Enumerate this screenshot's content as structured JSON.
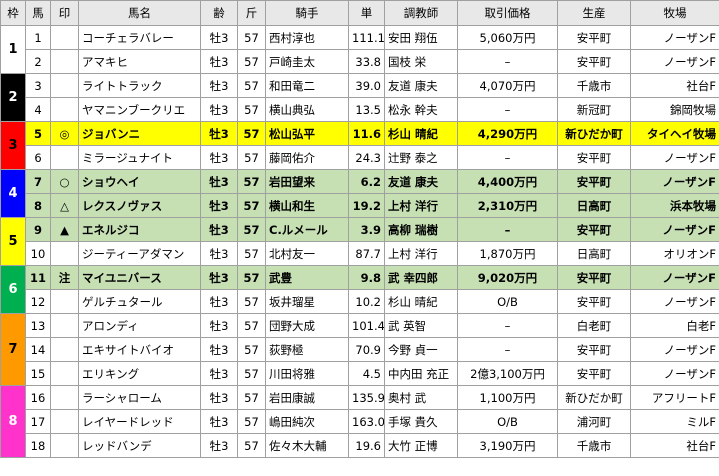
{
  "header": [
    "枠",
    "馬",
    "印",
    "馬名",
    "齢",
    "斤",
    "騎手",
    "単",
    "調教師",
    "取引価格",
    "生産",
    "牧場"
  ],
  "frames": [
    {
      "label": "1",
      "rows": 2,
      "color": "#ffffff",
      "text": "#000000"
    },
    {
      "label": "2",
      "rows": 2,
      "color": "#000000",
      "text": "#ffffff"
    },
    {
      "label": "3",
      "rows": 2,
      "color": "#ff0000",
      "text": "#000000"
    },
    {
      "label": "4",
      "rows": 2,
      "color": "#0000ff",
      "text": "#ffffff"
    },
    {
      "label": "5",
      "rows": 2,
      "color": "#ffff00",
      "text": "#000000"
    },
    {
      "label": "6",
      "rows": 2,
      "color": "#00b050",
      "text": "#ffffff"
    },
    {
      "label": "7",
      "rows": 3,
      "color": "#ff9900",
      "text": "#000000"
    },
    {
      "label": "8",
      "rows": 3,
      "color": "#ff33cc",
      "text": "#ffffff"
    }
  ],
  "rows": [
    {
      "cells": [
        "1",
        "",
        "コーチェラバレー",
        "牡3",
        "57",
        "西村淳也",
        "111.1",
        "安田 翔伍",
        "5,060万円",
        "安平町",
        "ノーザンF"
      ]
    },
    {
      "cells": [
        "2",
        "",
        "アマキヒ",
        "牡3",
        "57",
        "戸崎圭太",
        "33.8",
        "国枝 栄",
        "–",
        "安平町",
        "ノーザンF"
      ]
    },
    {
      "cells": [
        "3",
        "",
        "ライトトラック",
        "牡3",
        "57",
        "和田竜二",
        "39.0",
        "友道 康夫",
        "4,070万円",
        "千歳市",
        "社台F"
      ]
    },
    {
      "cells": [
        "4",
        "",
        "ヤマニンブークリエ",
        "牡3",
        "57",
        "横山典弘",
        "13.5",
        "松永 幹夫",
        "–",
        "新冠町",
        "錦岡牧場"
      ]
    },
    {
      "cells": [
        "5",
        "◎",
        "ジョバンニ",
        "牡3",
        "57",
        "松山弘平",
        "11.6",
        "杉山 晴紀",
        "4,290万円",
        "新ひだか町",
        "タイヘイ牧場"
      ],
      "highlight": "#ffff00"
    },
    {
      "cells": [
        "6",
        "",
        "ミラージュナイト",
        "牡3",
        "57",
        "藤岡佑介",
        "24.3",
        "辻野 泰之",
        "–",
        "安平町",
        "ノーザンF"
      ]
    },
    {
      "cells": [
        "7",
        "○",
        "ショウヘイ",
        "牡3",
        "57",
        "岩田望来",
        "6.2",
        "友道 康夫",
        "4,400万円",
        "安平町",
        "ノーザンF"
      ],
      "highlight": "#c6e0b4"
    },
    {
      "cells": [
        "8",
        "△",
        "レクスノヴァス",
        "牡3",
        "57",
        "横山和生",
        "19.2",
        "上村 洋行",
        "2,310万円",
        "日高町",
        "浜本牧場"
      ],
      "highlight": "#c6e0b4"
    },
    {
      "cells": [
        "9",
        "▲",
        "エネルジコ",
        "牡3",
        "57",
        "C.ルメール",
        "3.9",
        "高柳 瑞樹",
        "–",
        "安平町",
        "ノーザンF"
      ],
      "highlight": "#c6e0b4"
    },
    {
      "cells": [
        "10",
        "",
        "ジーティーアダマン",
        "牡3",
        "57",
        "北村友一",
        "87.7",
        "上村 洋行",
        "1,870万円",
        "日高町",
        "オリオンF"
      ]
    },
    {
      "cells": [
        "11",
        "注",
        "マイユニバース",
        "牡3",
        "57",
        "武豊",
        "9.8",
        "武 幸四郎",
        "9,020万円",
        "安平町",
        "ノーザンF"
      ],
      "highlight": "#c6e0b4"
    },
    {
      "cells": [
        "12",
        "",
        "ゲルチュタール",
        "牡3",
        "57",
        "坂井瑠星",
        "10.2",
        "杉山 晴紀",
        "O/B",
        "安平町",
        "ノーザンF"
      ]
    },
    {
      "cells": [
        "13",
        "",
        "アロンディ",
        "牡3",
        "57",
        "団野大成",
        "101.4",
        "武 英智",
        "–",
        "白老町",
        "白老F"
      ]
    },
    {
      "cells": [
        "14",
        "",
        "エキサイトバイオ",
        "牡3",
        "57",
        "荻野極",
        "70.9",
        "今野 貞一",
        "–",
        "安平町",
        "ノーザンF"
      ]
    },
    {
      "cells": [
        "15",
        "",
        "エリキング",
        "牡3",
        "57",
        "川田将雅",
        "4.5",
        "中内田 充正",
        "2億3,100万円",
        "安平町",
        "ノーザンF"
      ]
    },
    {
      "cells": [
        "16",
        "",
        "ラーシャローム",
        "牡3",
        "57",
        "岩田康誠",
        "135.9",
        "奥村 武",
        "1,100万円",
        "新ひだか町",
        "アフリートF"
      ]
    },
    {
      "cells": [
        "17",
        "",
        "レイヤードレッド",
        "牡3",
        "57",
        "嶋田純次",
        "163.0",
        "手塚 貴久",
        "O/B",
        "浦河町",
        "ミルF"
      ]
    },
    {
      "cells": [
        "18",
        "",
        "レッドバンデ",
        "牡3",
        "57",
        "佐々木大輔",
        "19.6",
        "大竹 正博",
        "3,190万円",
        "千歳市",
        "社台F"
      ]
    }
  ]
}
